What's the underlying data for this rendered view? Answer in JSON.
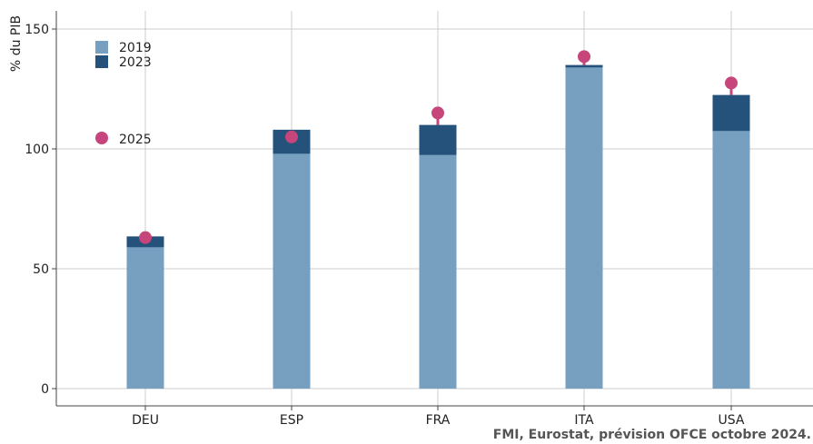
{
  "chart_data": {
    "type": "bar",
    "categories": [
      "DEU",
      "ESP",
      "FRA",
      "ITA",
      "USA"
    ],
    "ylabel": "% du PIB",
    "ylim": [
      0,
      150
    ],
    "yticks": [
      0,
      50,
      100,
      150
    ],
    "grid": true,
    "legend_position": "top-left",
    "series": [
      {
        "name": "2019",
        "kind": "bar",
        "color": "#769fc0",
        "values": [
          59,
          98,
          97.5,
          134,
          107.5
        ]
      },
      {
        "name": "2023",
        "kind": "bar",
        "color": "#24527a",
        "values": [
          63.5,
          108,
          110,
          135,
          122.5
        ]
      },
      {
        "name": "2025",
        "kind": "point",
        "color": "#c6457b",
        "values": [
          63,
          105,
          115,
          138.5,
          127.5
        ]
      }
    ]
  },
  "source": "FMI, Eurostat, prévision OFCE octobre 2024."
}
